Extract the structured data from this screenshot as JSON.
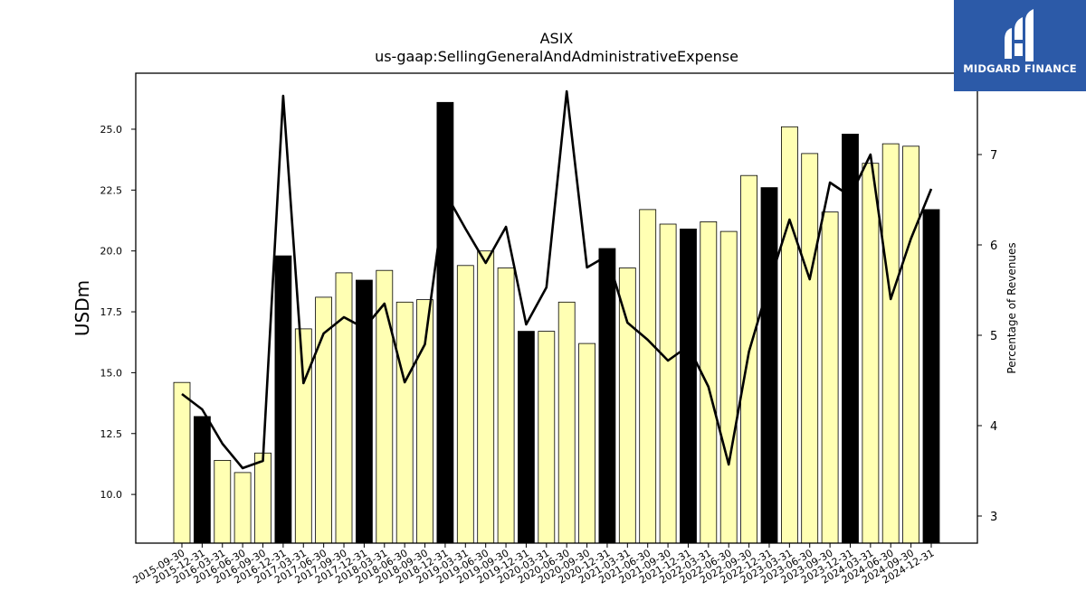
{
  "chart_data": {
    "type": "bar",
    "title": "ASIX",
    "subtitle": "us-gaap:SellingGeneralAndAdministrativeExpense",
    "ylabel": "USDm",
    "y2label": "Percentage of Revenues",
    "ylim": [
      8.0,
      27.3
    ],
    "y2lim": [
      2.7,
      7.9
    ],
    "yticks": [
      10.0,
      12.5,
      15.0,
      17.5,
      20.0,
      22.5,
      25.0
    ],
    "y2ticks": [
      3,
      4,
      5,
      6,
      7
    ],
    "categories": [
      "2015-09-30",
      "2015-12-31",
      "2016-03-31",
      "2016-06-30",
      "2016-09-30",
      "2016-12-31",
      "2017-03-31",
      "2017-06-30",
      "2017-09-30",
      "2017-12-31",
      "2018-03-31",
      "2018-06-30",
      "2018-09-30",
      "2018-12-31",
      "2019-03-31",
      "2019-06-30",
      "2019-09-30",
      "2019-12-31",
      "2020-03-31",
      "2020-06-30",
      "2020-09-30",
      "2020-12-31",
      "2021-03-31",
      "2021-06-30",
      "2021-09-30",
      "2021-12-31",
      "2022-03-31",
      "2022-06-30",
      "2022-09-30",
      "2022-12-31",
      "2023-03-31",
      "2023-06-30",
      "2023-09-30",
      "2023-12-31",
      "2024-03-31",
      "2024-06-30",
      "2024-09-30",
      "2024-12-31"
    ],
    "series": [
      {
        "type": "bar",
        "values": [
          14.6,
          13.2,
          11.4,
          10.9,
          11.7,
          19.8,
          16.8,
          18.1,
          19.1,
          18.8,
          19.2,
          17.9,
          18.0,
          26.1,
          19.4,
          20.0,
          19.3,
          16.7,
          16.7,
          17.9,
          16.2,
          20.1,
          19.3,
          21.7,
          21.1,
          20.9,
          21.2,
          20.8,
          23.1,
          22.6,
          25.1,
          24.0,
          21.6,
          24.8,
          23.6,
          24.4,
          24.3,
          21.7
        ],
        "highlight": [
          false,
          true,
          false,
          false,
          false,
          true,
          false,
          false,
          false,
          true,
          false,
          false,
          false,
          true,
          false,
          false,
          false,
          true,
          false,
          false,
          false,
          true,
          false,
          false,
          false,
          true,
          false,
          false,
          false,
          true,
          false,
          false,
          false,
          true,
          false,
          false,
          false,
          true
        ]
      },
      {
        "type": "line",
        "axis": "right",
        "values": [
          4.35,
          4.18,
          3.8,
          3.53,
          3.61,
          7.65,
          4.47,
          5.02,
          5.2,
          5.08,
          5.35,
          4.48,
          4.9,
          6.58,
          6.18,
          5.8,
          6.2,
          5.12,
          5.53,
          7.7,
          5.75,
          5.88,
          5.14,
          4.95,
          4.72,
          4.88,
          4.43,
          3.57,
          4.82,
          5.58,
          6.28,
          5.62,
          6.69,
          6.54,
          7.0,
          5.4,
          6.07,
          6.62
        ]
      }
    ],
    "colors": {
      "bar": "#ffffb3",
      "bar_highlight": "#000000",
      "line": "#000000",
      "logo_bg": "#2c5aa8"
    },
    "logo": {
      "text": "MIDGARD FINANCE"
    }
  }
}
